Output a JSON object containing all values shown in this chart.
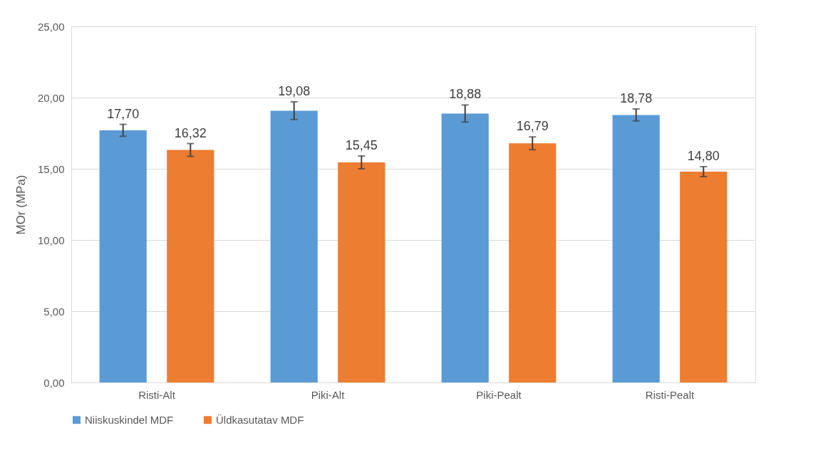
{
  "chart_data": {
    "type": "bar",
    "ylabel": "MOr (MPa)",
    "categories": [
      "Risti-Alt",
      "Piki-Alt",
      "Piki-Pealt",
      "Risti-Pealt"
    ],
    "series": [
      {
        "name": "Niiskuskindel MDF",
        "color": "#5b9bd5",
        "values": [
          17.7,
          19.08,
          18.88,
          18.78
        ],
        "errors": [
          0.42,
          0.62,
          0.6,
          0.42
        ],
        "value_labels": [
          "17,70",
          "19,08",
          "18,88",
          "18,78"
        ]
      },
      {
        "name": "Üldkasutatav MDF",
        "color": "#ed7d31",
        "values": [
          16.32,
          15.45,
          16.79,
          14.8
        ],
        "errors": [
          0.45,
          0.45,
          0.45,
          0.35
        ],
        "value_labels": [
          "16,32",
          "15,45",
          "16,79",
          "14,80"
        ]
      }
    ],
    "ylim": [
      0,
      25
    ],
    "yticks": [
      {
        "value": 0,
        "label": "0,00"
      },
      {
        "value": 5,
        "label": "5,00"
      },
      {
        "value": 10,
        "label": "10,00"
      },
      {
        "value": 15,
        "label": "15,00"
      },
      {
        "value": 20,
        "label": "20,00"
      },
      {
        "value": 25,
        "label": "25,00"
      }
    ],
    "grid": "y",
    "legend": "bottom"
  }
}
